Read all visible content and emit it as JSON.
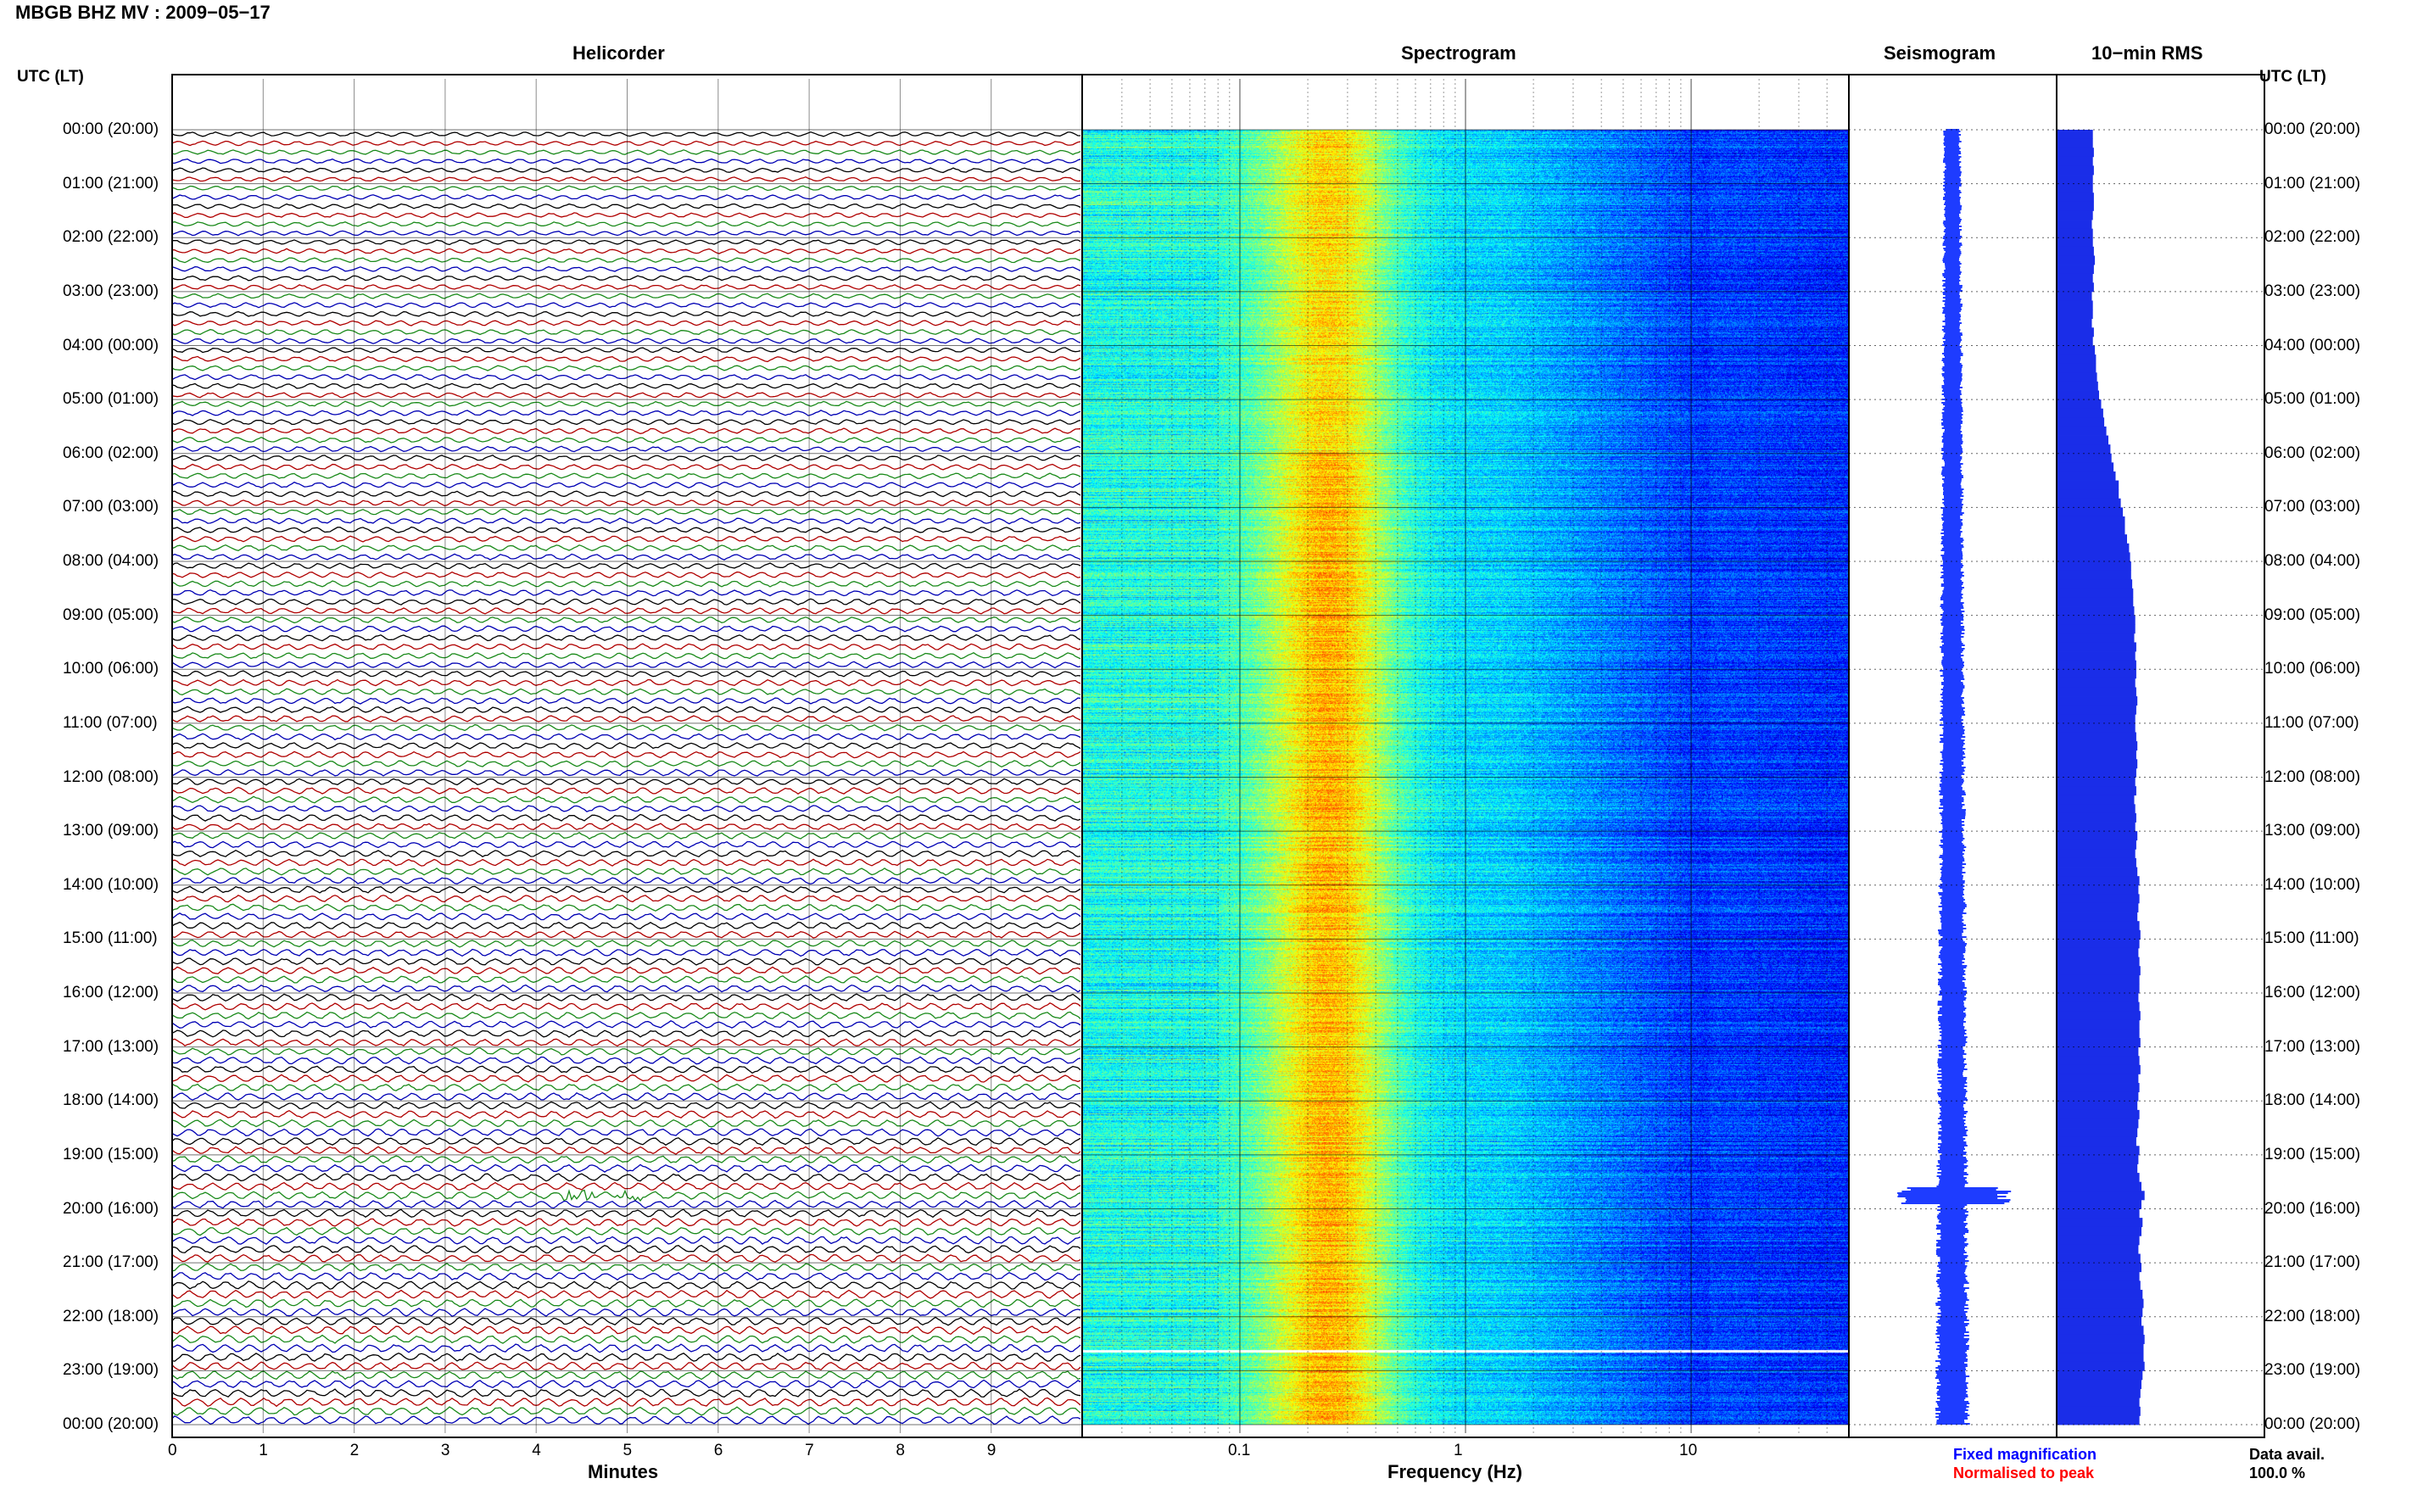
{
  "header": {
    "title": "MBGB BHZ MV : 2009−05−17"
  },
  "panels": {
    "helicorder": "Helicorder",
    "spectrogram": "Spectrogram",
    "seismogram": "Seismogram",
    "rms": "10−min RMS"
  },
  "axes": {
    "left_axis_label": "UTC (LT)",
    "right_axis_label": "UTC (LT)",
    "minutes_label": "Minutes",
    "frequency_label": "Frequency (Hz)",
    "minute_ticks": [
      "0",
      "1",
      "2",
      "3",
      "4",
      "5",
      "6",
      "7",
      "8",
      "9"
    ],
    "frequency_ticks": [
      "0.1",
      "1",
      "10"
    ],
    "time_labels": [
      "00:00 (20:00)",
      "01:00 (21:00)",
      "02:00 (22:00)",
      "03:00 (23:00)",
      "04:00 (00:00)",
      "05:00 (01:00)",
      "06:00 (02:00)",
      "07:00 (03:00)",
      "08:00 (04:00)",
      "09:00 (05:00)",
      "10:00 (06:00)",
      "11:00 (07:00)",
      "12:00 (08:00)",
      "13:00 (09:00)",
      "14:00 (10:00)",
      "15:00 (11:00)",
      "16:00 (12:00)",
      "17:00 (13:00)",
      "18:00 (14:00)",
      "19:00 (15:00)",
      "20:00 (16:00)",
      "21:00 (17:00)",
      "22:00 (18:00)",
      "23:00 (19:00)",
      "00:00 (20:00)"
    ]
  },
  "legend": {
    "fixed": "Fixed magnification",
    "normalised": "Normalised to peak",
    "fixed_color": "#0000ff",
    "normalised_color": "#ff0000"
  },
  "availability": {
    "label": "Data avail.",
    "value": "100.0 %"
  },
  "colors": {
    "trace_cycle": [
      "#000000",
      "#b00000",
      "#1a8a1a",
      "#0000b4"
    ],
    "seismogram": "#1e3cff",
    "rms_bars": "#1a2de8"
  },
  "chart_data": {
    "type": "heatmap",
    "x_minutes_range": [
      0,
      10
    ],
    "frequency_range_hz": [
      0.02,
      50
    ],
    "frequency_scale": "log",
    "time_range_hours": [
      0,
      24
    ],
    "traces_per_hour": 6,
    "grid": true,
    "events": [
      {
        "time_utc": "19:45",
        "minute": 5
      }
    ],
    "rms_10min": [
      0.35,
      0.35,
      0.36,
      0.35,
      0.36,
      0.35,
      0.35,
      0.36,
      0.36,
      0.35,
      0.34,
      0.35,
      0.35,
      0.36,
      0.37,
      0.36,
      0.35,
      0.36,
      0.34,
      0.35,
      0.35,
      0.34,
      0.36,
      0.35,
      0.37,
      0.38,
      0.38,
      0.39,
      0.4,
      0.41,
      0.43,
      0.45,
      0.46,
      0.48,
      0.5,
      0.52,
      0.53,
      0.55,
      0.57,
      0.6,
      0.6,
      0.62,
      0.64,
      0.66,
      0.66,
      0.68,
      0.7,
      0.71,
      0.72,
      0.72,
      0.73,
      0.74,
      0.74,
      0.75,
      0.76,
      0.76,
      0.75,
      0.77,
      0.76,
      0.77,
      0.77,
      0.76,
      0.77,
      0.78,
      0.77,
      0.76,
      0.76,
      0.77,
      0.78,
      0.77,
      0.78,
      0.77,
      0.76,
      0.77,
      0.75,
      0.76,
      0.77,
      0.76,
      0.78,
      0.77,
      0.76,
      0.77,
      0.78,
      0.8,
      0.79,
      0.8,
      0.79,
      0.78,
      0.8,
      0.81,
      0.8,
      0.79,
      0.8,
      0.81,
      0.8,
      0.8,
      0.79,
      0.8,
      0.81,
      0.8,
      0.8,
      0.81,
      0.79,
      0.8,
      0.81,
      0.79,
      0.8,
      0.79,
      0.78,
      0.8,
      0.79,
      0.78,
      0.77,
      0.8,
      0.79,
      0.78,
      0.8,
      0.82,
      0.85,
      0.82,
      0.8,
      0.83,
      0.82,
      0.8,
      0.79,
      0.81,
      0.82,
      0.8,
      0.81,
      0.83,
      0.84,
      0.83,
      0.82,
      0.84,
      0.85,
      0.84,
      0.84,
      0.85,
      0.83,
      0.82,
      0.81,
      0.8,
      0.81,
      0.8
    ]
  }
}
